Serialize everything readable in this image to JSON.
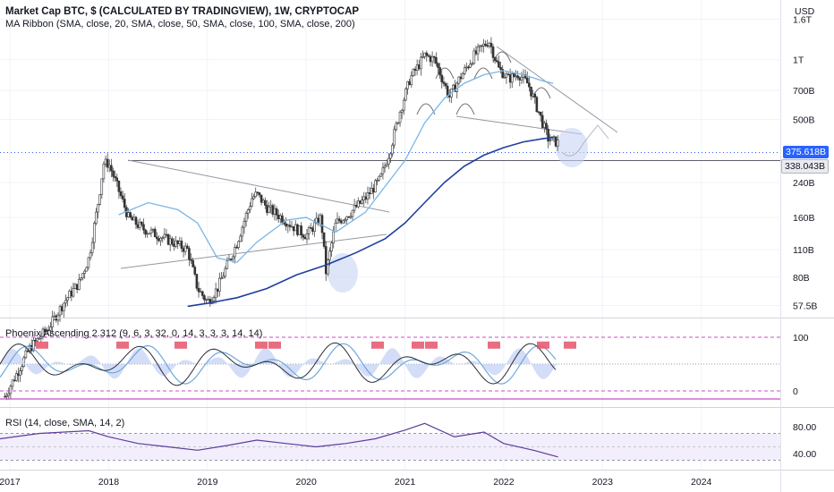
{
  "header": {
    "title": "Market Cap BTC, $ (CALCULATED BY TRADINGVIEW), 1W, CRYPTOCAP",
    "indicator": "MA Ribbon (SMA, close, 20, SMA, close, 50, SMA, close, 100, SMA, close, 200)"
  },
  "panes": {
    "osc_label": "Phoenix Ascending 2.312 (9, 6, 3, 32, 0, 14, 3, 3, 3, 14, 14)",
    "rsi_label": "RSI (14, close, SMA, 14, 2)"
  },
  "price_tags": {
    "current": "375.618B",
    "level": "338.043B"
  },
  "colors": {
    "ma_short": "#7ab6e6",
    "ma_long": "#1e3f9c",
    "tag_current": "#2962ff",
    "osc_red": "#e5536b",
    "osc_fill": "#c8d4f5",
    "dashed_magenta": "#c84fc4",
    "rsi_line": "#5b3d9c"
  },
  "chart_data": [
    {
      "type": "line",
      "pane": "price",
      "scale": "log",
      "y_unit": "USD",
      "y_ticks": [
        "1.6T",
        "1T",
        "700B",
        "500B",
        "240B",
        "160B",
        "110B",
        "80B",
        "57.5B"
      ],
      "y_tick_values": [
        1600,
        1000,
        700,
        500,
        240,
        160,
        110,
        80,
        57.5
      ],
      "x_ticks": [
        "2017",
        "2018",
        "2019",
        "2020",
        "2021",
        "2022",
        "2023",
        "2024"
      ],
      "x_tick_values": [
        2017,
        2018,
        2019,
        2020,
        2021,
        2022,
        2023,
        2024
      ],
      "xlim": [
        2016.9,
        2024.8
      ],
      "ylim": [
        50,
        2000
      ],
      "series": [
        {
          "values_x": [
            2016.95,
            2017.2,
            2017.4,
            2017.55,
            2017.7,
            2017.8,
            2017.9,
            2017.95,
            2018.0,
            2018.1,
            2018.2,
            2018.35,
            2018.5,
            2018.65,
            2018.8,
            2018.9,
            2019.0,
            2019.1,
            2019.3,
            2019.45,
            2019.5,
            2019.6,
            2019.75,
            2019.9,
            2020.0,
            2020.15,
            2020.2,
            2020.3,
            2020.45,
            2020.6,
            2020.75,
            2020.85,
            2020.95,
            2021.05,
            2021.2,
            2021.3,
            2021.45,
            2021.55,
            2021.7,
            2021.85,
            2021.95,
            2022.05,
            2022.15,
            2022.25,
            2022.35,
            2022.45,
            2022.55
          ],
          "values_y": [
            20,
            35,
            45,
            60,
            75,
            100,
            200,
            300,
            300,
            220,
            160,
            140,
            130,
            120,
            110,
            70,
            60,
            70,
            120,
            200,
            210,
            180,
            160,
            140,
            130,
            160,
            85,
            150,
            170,
            200,
            250,
            350,
            550,
            800,
            1050,
            1000,
            650,
            800,
            1050,
            1250,
            900,
            800,
            850,
            750,
            550,
            400,
            380
          ]
        },
        {
          "values_x": [
            2018.1,
            2018.4,
            2018.7,
            2018.9,
            2019.1,
            2019.3,
            2019.5,
            2019.8,
            2020.0,
            2020.3,
            2020.6,
            2020.8,
            2021.0,
            2021.2,
            2021.4,
            2021.6,
            2021.8,
            2022.0,
            2022.2,
            2022.4,
            2022.5
          ],
          "values_y": [
            165,
            190,
            175,
            150,
            100,
            95,
            120,
            155,
            160,
            135,
            170,
            230,
            310,
            480,
            640,
            760,
            840,
            880,
            840,
            780,
            760
          ]
        },
        {
          "values_x": [
            2018.8,
            2019.0,
            2019.3,
            2019.6,
            2019.9,
            2020.2,
            2020.5,
            2020.8,
            2021.0,
            2021.2,
            2021.4,
            2021.6,
            2021.8,
            2022.0,
            2022.2,
            2022.4,
            2022.5
          ],
          "values_y": [
            57,
            59,
            63,
            70,
            82,
            92,
            106,
            125,
            150,
            190,
            240,
            290,
            330,
            360,
            385,
            400,
            405
          ]
        }
      ]
    },
    {
      "type": "line",
      "pane": "oscillator",
      "y_ticks": [
        "100",
        "0"
      ],
      "y_tick_values": [
        100,
        0
      ],
      "ylim": [
        -25,
        125
      ]
    },
    {
      "type": "line",
      "pane": "rsi",
      "y_ticks": [
        "80.00",
        "40.00"
      ],
      "y_tick_values": [
        80,
        40
      ],
      "ylim": [
        20,
        100
      ],
      "series": [
        {
          "values_x": [
            2016.9,
            2017.3,
            2017.8,
            2018.0,
            2018.3,
            2018.6,
            2018.9,
            2019.2,
            2019.5,
            2019.8,
            2020.1,
            2020.4,
            2020.7,
            2021.0,
            2021.2,
            2021.5,
            2021.8,
            2022.0,
            2022.3,
            2022.55
          ],
          "values_y": [
            62,
            70,
            74,
            65,
            55,
            50,
            45,
            52,
            60,
            55,
            50,
            55,
            62,
            75,
            85,
            65,
            72,
            55,
            45,
            35
          ]
        }
      ]
    }
  ]
}
